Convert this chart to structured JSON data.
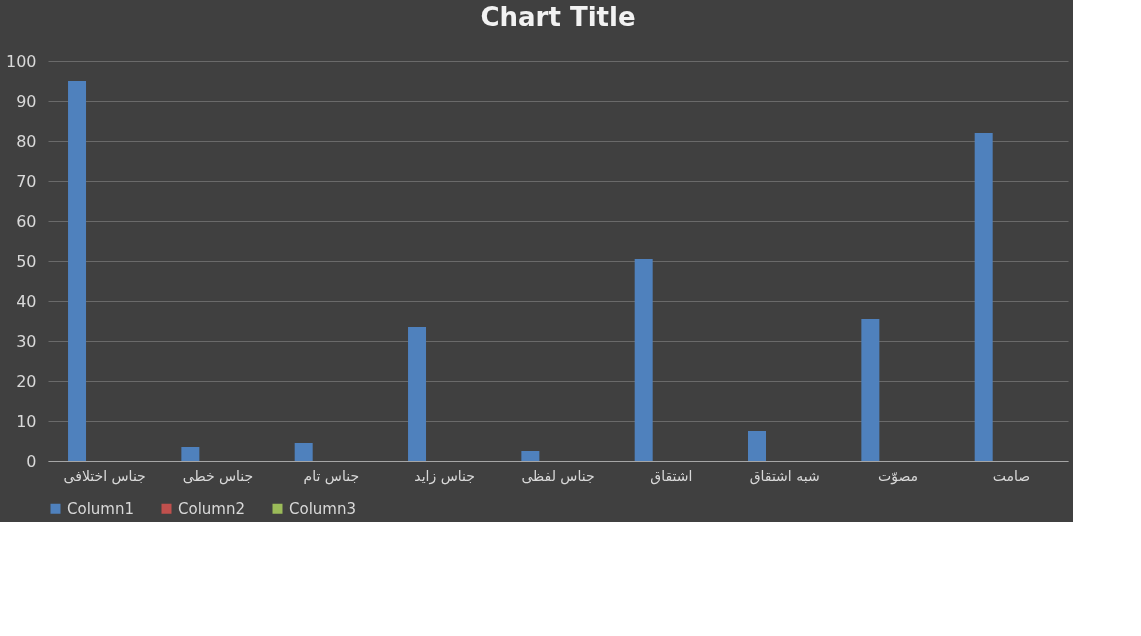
{
  "chart_data": {
    "type": "bar",
    "title": "Chart Title",
    "categories": [
      "جناس اختلافی",
      "جناس خطی",
      "جناس تام",
      "جناس زاید",
      "جناس لفظی",
      "اشتقاق",
      "شبه اشتقاق",
      "مصوّت",
      "صامت"
    ],
    "series": [
      {
        "name": "Column1",
        "color": "#4f81bd",
        "values": [
          95,
          3.5,
          4.5,
          33.5,
          2.5,
          50.5,
          7.5,
          35.5,
          82
        ]
      },
      {
        "name": "Column2",
        "color": "#c0504d",
        "values": [
          null,
          null,
          null,
          null,
          null,
          null,
          null,
          null,
          null
        ]
      },
      {
        "name": "Column3",
        "color": "#9bbb59",
        "values": [
          null,
          null,
          null,
          null,
          null,
          null,
          null,
          null,
          null
        ]
      }
    ],
    "ylim": [
      0,
      100
    ],
    "yticks": [
      0,
      10,
      20,
      30,
      40,
      50,
      60,
      70,
      80,
      90,
      100
    ],
    "grid": "y",
    "legend": "bottom"
  }
}
